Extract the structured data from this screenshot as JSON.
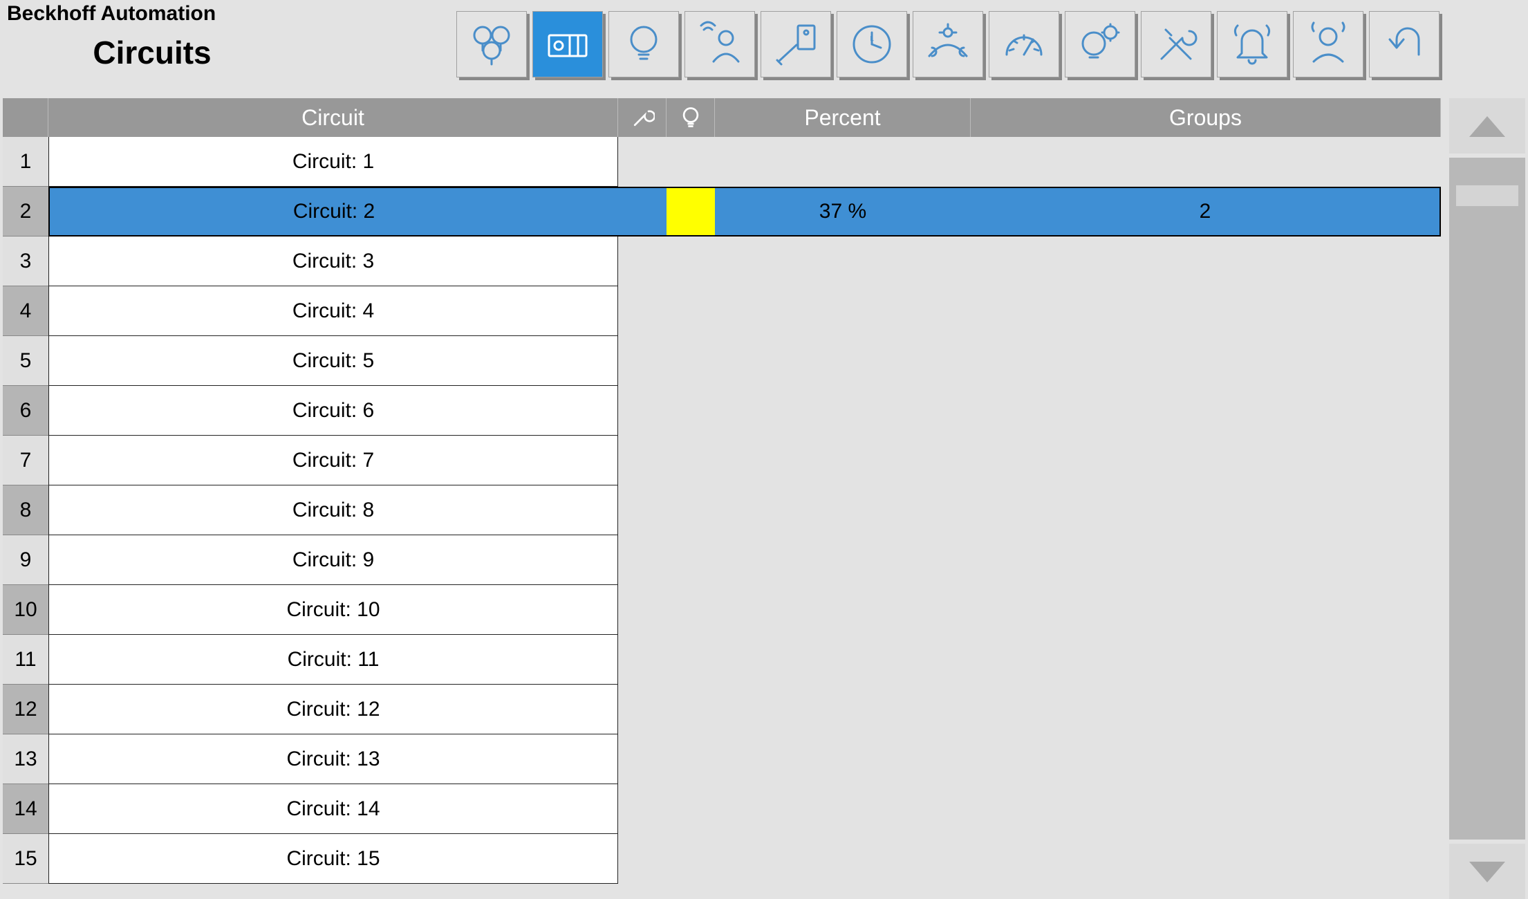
{
  "brand": "Beckhoff Automation",
  "page_title": "Circuits",
  "toolbar": {
    "buttons": [
      {
        "name": "lamps-icon",
        "active": false
      },
      {
        "name": "circuits-icon",
        "active": true
      },
      {
        "name": "bulb-icon",
        "active": false
      },
      {
        "name": "presence-icon",
        "active": false
      },
      {
        "name": "switch-icon",
        "active": false
      },
      {
        "name": "clock-icon",
        "active": false
      },
      {
        "name": "daylight-icon",
        "active": false
      },
      {
        "name": "gauge-icon",
        "active": false
      },
      {
        "name": "settings-bulb-icon",
        "active": false
      },
      {
        "name": "tools-icon",
        "active": false
      },
      {
        "name": "alarm-icon",
        "active": false
      },
      {
        "name": "user-icon",
        "active": false
      },
      {
        "name": "back-icon",
        "active": false
      }
    ]
  },
  "table": {
    "headers": {
      "circuit": "Circuit",
      "percent": "Percent",
      "groups": "Groups"
    },
    "selected_index": 1,
    "rows": [
      {
        "idx": "1",
        "circuit": "Circuit: 1",
        "bulb": "",
        "percent": "",
        "groups": ""
      },
      {
        "idx": "2",
        "circuit": "Circuit: 2",
        "bulb": "on",
        "percent": "37 %",
        "groups": "2"
      },
      {
        "idx": "3",
        "circuit": "Circuit: 3",
        "bulb": "",
        "percent": "",
        "groups": ""
      },
      {
        "idx": "4",
        "circuit": "Circuit: 4",
        "bulb": "",
        "percent": "",
        "groups": ""
      },
      {
        "idx": "5",
        "circuit": "Circuit: 5",
        "bulb": "",
        "percent": "",
        "groups": ""
      },
      {
        "idx": "6",
        "circuit": "Circuit: 6",
        "bulb": "",
        "percent": "",
        "groups": ""
      },
      {
        "idx": "7",
        "circuit": "Circuit: 7",
        "bulb": "",
        "percent": "",
        "groups": ""
      },
      {
        "idx": "8",
        "circuit": "Circuit: 8",
        "bulb": "",
        "percent": "",
        "groups": ""
      },
      {
        "idx": "9",
        "circuit": "Circuit: 9",
        "bulb": "",
        "percent": "",
        "groups": ""
      },
      {
        "idx": "10",
        "circuit": "Circuit: 10",
        "bulb": "",
        "percent": "",
        "groups": ""
      },
      {
        "idx": "11",
        "circuit": "Circuit: 11",
        "bulb": "",
        "percent": "",
        "groups": ""
      },
      {
        "idx": "12",
        "circuit": "Circuit: 12",
        "bulb": "",
        "percent": "",
        "groups": ""
      },
      {
        "idx": "13",
        "circuit": "Circuit: 13",
        "bulb": "",
        "percent": "",
        "groups": ""
      },
      {
        "idx": "14",
        "circuit": "Circuit: 14",
        "bulb": "",
        "percent": "",
        "groups": ""
      },
      {
        "idx": "15",
        "circuit": "Circuit: 15",
        "bulb": "",
        "percent": "",
        "groups": ""
      }
    ]
  },
  "colors": {
    "accent": "#2a8fdb",
    "icon": "#4a8ec9",
    "header_bg": "#989898",
    "selected_row": "#3f8fd4",
    "bulb_on": "#ffff00",
    "bg": "#e3e3e3"
  }
}
